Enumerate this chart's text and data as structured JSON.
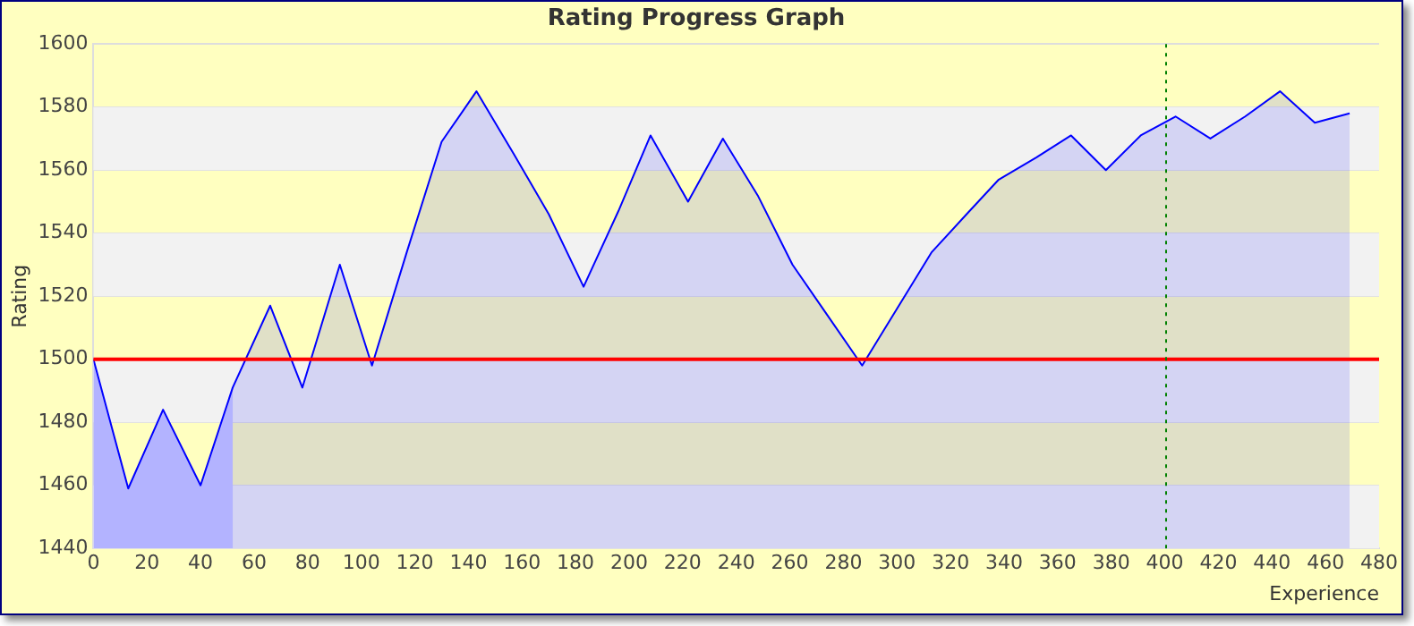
{
  "chart_data": {
    "type": "area",
    "title": "Rating Progress Graph",
    "xlabel": "Experience",
    "ylabel": "Rating",
    "x": [
      0,
      13,
      26,
      40,
      52,
      66,
      78,
      92,
      104,
      117,
      130,
      143,
      157,
      170,
      183,
      196,
      208,
      222,
      235,
      248,
      261,
      274,
      287,
      300,
      313,
      326,
      338,
      352,
      365,
      378,
      391,
      404,
      417,
      430,
      443,
      456,
      469
    ],
    "series": [
      {
        "color": "#0000ff",
        "values": [
          1500,
          1459,
          1484,
          1460,
          1491,
          1517,
          1491,
          1530,
          1498,
          1534,
          1569,
          1585,
          1565,
          1546,
          1523,
          1547,
          1571,
          1550,
          1570,
          1552,
          1530,
          1514,
          1498,
          1516,
          1534,
          1546,
          1557,
          1564,
          1571,
          1560,
          1571,
          1577,
          1570,
          1577,
          1585,
          1575,
          1578
        ]
      }
    ],
    "xlim": [
      0,
      480
    ],
    "xticks": [
      0,
      20,
      40,
      60,
      80,
      100,
      120,
      140,
      160,
      180,
      200,
      220,
      240,
      260,
      280,
      300,
      320,
      340,
      360,
      380,
      400,
      420,
      440,
      460,
      480
    ],
    "ylim": [
      1440,
      1600
    ],
    "yticks": [
      1440,
      1460,
      1480,
      1500,
      1520,
      1540,
      1560,
      1580,
      1600
    ],
    "grid": "y",
    "legend": false,
    "marker": "none",
    "line_style": "solid",
    "ref_lines": [
      {
        "axis": "y",
        "value": 1500,
        "color": "#ff0000",
        "line_style": "solid"
      },
      {
        "axis": "x",
        "value": 400,
        "color": "#008000",
        "line_style": "dotted"
      }
    ],
    "bands": [
      {
        "axis": "x",
        "from": 0,
        "to": 52,
        "color": "#ccccff"
      }
    ]
  }
}
